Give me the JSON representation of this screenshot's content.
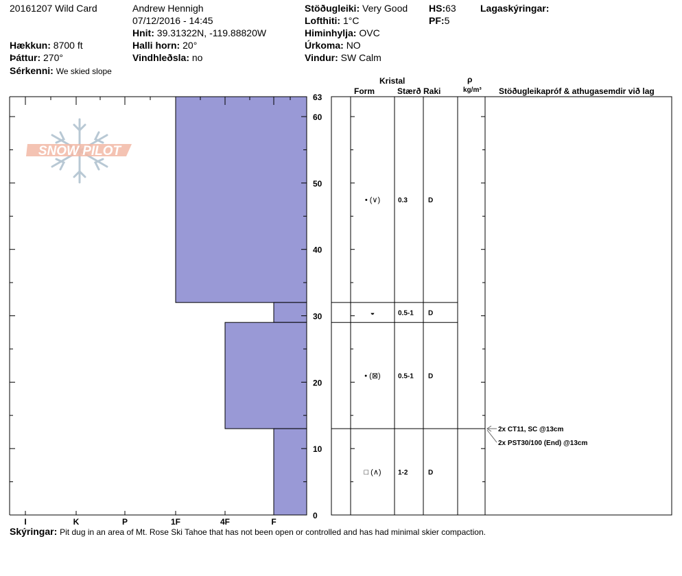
{
  "header": {
    "pit_name": "20161207 Wild Card",
    "observer": "Andrew Hennigh",
    "datetime": "07/12/2016 - 14:45",
    "coords_label": "Hnit:",
    "coords_value": "39.31322N, -119.88820W",
    "elevation_label": "Hækkun:",
    "elevation_value": "8700 ft",
    "aspect_label": "Þáttur:",
    "aspect_value": "270°",
    "slope_label": "Halli horn:",
    "slope_value": "20°",
    "features_label": "Sérkenni:",
    "features_value": "We skied slope",
    "wind_loading_label": "Vindhleðsla:",
    "wind_loading_value": "no",
    "stability_label": "Stöðugleiki:",
    "stability_value": "Very Good",
    "air_temp_label": "Lofthiti:",
    "air_temp_value": "1°C",
    "sky_label": "Himinhylja:",
    "sky_value": "OVC",
    "precip_label": "Úrkoma:",
    "precip_value": "NO",
    "wind_label": "Vindur:",
    "wind_value": "SW Calm",
    "hs_label": "HS:",
    "hs_value": "63",
    "pf_label": "PF:",
    "pf_value": "5",
    "legend_label": "Lagaskýringar:"
  },
  "logo_text": "SNOW PILOT",
  "columns": {
    "crystal": "Kristal",
    "form": "Form",
    "size": "Stærð",
    "moisture": "Raki",
    "rho": "ρ",
    "density_unit": "kg/m³",
    "tests": "Stöðugleikapróf & athugasemdir við lag"
  },
  "footer": {
    "label": "Skýringar:",
    "text": "Pit dug in an area of Mt. Rose Ski Tahoe that has not been open or controlled and has had minimal skier compaction."
  },
  "colors": {
    "hardness_fill": "#9999d6",
    "hardness_stroke": "#000000",
    "logo": "#f2b9a6",
    "snowflake": "#b8c8d4"
  },
  "chart_data": {
    "type": "bar",
    "orientation": "horizontal",
    "y_axis": {
      "label": "",
      "ylim": [
        0,
        63
      ],
      "ticks": [
        0,
        10,
        20,
        30,
        40,
        50,
        60,
        63
      ]
    },
    "hardness_scale": [
      "I",
      "K",
      "P",
      "1F",
      "4F",
      "F"
    ],
    "layers": [
      {
        "bottom": 32,
        "top": 63,
        "hardness": "1F",
        "form_symbol": "• (∨)",
        "size": "0.3",
        "moisture": "D"
      },
      {
        "bottom": 29,
        "top": 32,
        "hardness": "F",
        "form_symbol": "◒",
        "size": "0.5-1",
        "moisture": "D"
      },
      {
        "bottom": 13,
        "top": 29,
        "hardness": "4F",
        "form_symbol": "• (⊠)",
        "size": "0.5-1",
        "moisture": "D"
      },
      {
        "bottom": 0,
        "top": 13,
        "hardness": "F",
        "form_symbol": "□ (∧)",
        "size": "1-2",
        "moisture": "D"
      }
    ],
    "tests": [
      {
        "height": 13,
        "text": "2x CT11, SC @13cm"
      },
      {
        "height": 13,
        "text": "2x PST30/100 (End) @13cm"
      }
    ]
  }
}
